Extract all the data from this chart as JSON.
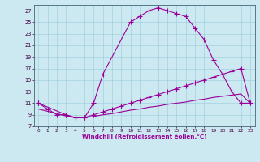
{
  "xlabel": "Windchill (Refroidissement éolien,°C)",
  "bg_color": "#cce8f0",
  "line_color": "#990099",
  "grid_color": "#99ccdd",
  "xlim": [
    -0.5,
    23.5
  ],
  "ylim": [
    7,
    28
  ],
  "yticks": [
    7,
    9,
    11,
    13,
    15,
    17,
    19,
    21,
    23,
    25,
    27
  ],
  "xticks": [
    0,
    1,
    2,
    3,
    4,
    5,
    6,
    7,
    8,
    9,
    10,
    11,
    12,
    13,
    14,
    15,
    16,
    17,
    18,
    19,
    20,
    21,
    22,
    23
  ],
  "curve1_x": [
    0,
    1,
    2,
    3,
    4,
    5,
    6,
    7,
    10,
    11,
    12,
    13,
    14,
    15,
    16,
    17,
    18,
    19,
    20,
    21,
    22,
    23
  ],
  "curve1_y": [
    11,
    10,
    9,
    9,
    8.5,
    8.5,
    11,
    16,
    25,
    26,
    27,
    27.5,
    27,
    26.5,
    26,
    24,
    22,
    18.5,
    16,
    13,
    11,
    11
  ],
  "curve2_x": [
    0,
    3,
    4,
    5,
    6,
    7,
    8,
    9,
    10,
    11,
    12,
    13,
    14,
    15,
    16,
    17,
    18,
    19,
    20,
    21,
    22,
    23
  ],
  "curve2_y": [
    11,
    9,
    8.5,
    8.5,
    9,
    9.5,
    10,
    10.5,
    11,
    11.5,
    12,
    12.5,
    13,
    13.5,
    14,
    14.5,
    15,
    15.5,
    16,
    16.5,
    17,
    11
  ],
  "curve3_x": [
    0,
    3,
    4,
    5,
    6,
    7,
    8,
    9,
    10,
    11,
    12,
    13,
    14,
    15,
    16,
    17,
    18,
    19,
    20,
    21,
    22,
    23
  ],
  "curve3_y": [
    10,
    8.8,
    8.5,
    8.5,
    8.7,
    9.0,
    9.2,
    9.5,
    9.8,
    10.0,
    10.3,
    10.5,
    10.8,
    11.0,
    11.2,
    11.5,
    11.7,
    12.0,
    12.2,
    12.4,
    12.6,
    11
  ]
}
